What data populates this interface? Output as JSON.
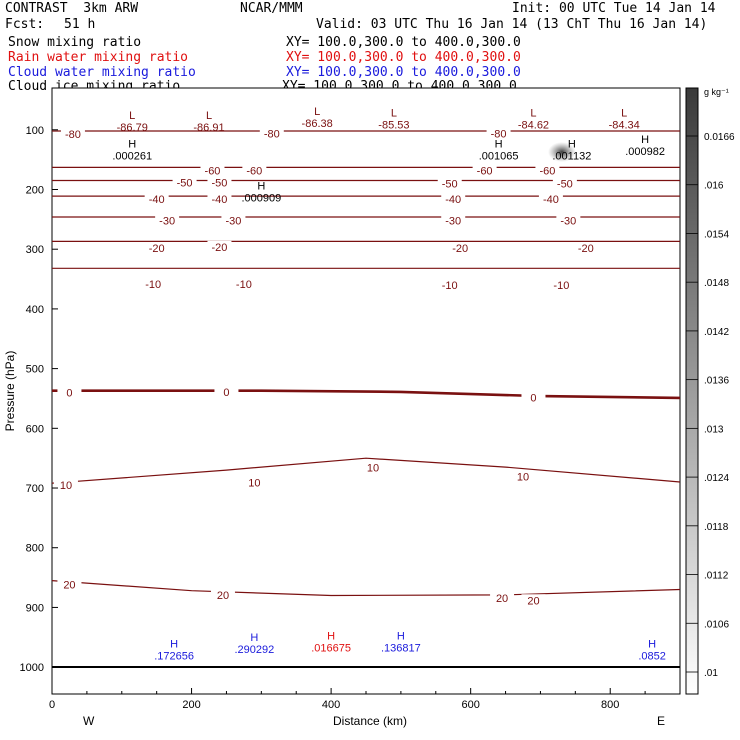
{
  "header": {
    "model": "CONTRAST  3km ARW",
    "center": "NCAR/MMM",
    "init": "Init: 00 UTC Tue 14 Jan 14",
    "fcst_label": "Fcst:",
    "fcst_value": "51 h",
    "valid": "Valid: 03 UTC Thu 16 Jan 14 (13 ChT Thu 16 Jan 14)",
    "fields": [
      {
        "name": "Snow mixing ratio",
        "xy": "XY= 100.0,300.0 to 400.0,300.0",
        "color": "#000000"
      },
      {
        "name": "Rain water mixing ratio",
        "xy": "XY= 100.0,300.0 to 400.0,300.0",
        "color": "#e01010"
      },
      {
        "name": "Cloud water mixing ratio",
        "xy": "XY= 100.0,300.0 to 400.0,300.0",
        "color": "#1a1adc"
      },
      {
        "name": "Cloud ice mixing ratio",
        "xy": "XY= 100.0,300.0 to 400.0,300.0",
        "color": "#000000"
      }
    ]
  },
  "colors": {
    "temperature_contour": "#7a1010",
    "cloud_water": "#1a1adc",
    "rain": "#e01010",
    "snow": "#000000"
  },
  "chart_data": {
    "type": "contour-cross-section",
    "xlabel": "Distance (km)",
    "ylabel": "Pressure (hPa)",
    "xlim": [
      0,
      900
    ],
    "ylim": [
      1045,
      30
    ],
    "x_ticks": [
      0,
      200,
      400,
      600,
      800
    ],
    "y_ticks": [
      100,
      200,
      300,
      400,
      500,
      600,
      700,
      800,
      900,
      1000
    ],
    "direction_labels": {
      "left": "W",
      "right": "E"
    },
    "colorbar": {
      "unit": "g kg⁻¹",
      "ticks": [
        "0.0166",
        ".016",
        ".0154",
        ".0148",
        ".0142",
        ".0136",
        ".013",
        ".0124",
        ".0118",
        ".0112",
        ".0106",
        ".01"
      ]
    },
    "temperature_contours": [
      {
        "value": -80,
        "pressure": [
          102,
          102
        ],
        "x": [
          0,
          900
        ]
      },
      {
        "value": -60,
        "pressure": [
          163,
          163
        ],
        "x": [
          0,
          900
        ]
      },
      {
        "value": -50,
        "pressure": [
          185,
          185
        ],
        "x": [
          0,
          900
        ]
      },
      {
        "value": -40,
        "pressure": [
          211,
          211
        ],
        "x": [
          0,
          900
        ]
      },
      {
        "value": -30,
        "pressure": [
          246,
          246
        ],
        "x": [
          0,
          900
        ]
      },
      {
        "value": -20,
        "pressure": [
          287,
          287
        ],
        "x": [
          0,
          900
        ]
      },
      {
        "value": -10,
        "pressure": [
          332,
          332
        ],
        "x": [
          0,
          900
        ]
      },
      {
        "value": 0,
        "pressure": [
          537,
          537,
          539,
          546,
          549
        ],
        "x": [
          0,
          300,
          500,
          700,
          900
        ]
      },
      {
        "value": 10,
        "pressure": [
          692,
          670,
          650,
          665,
          690
        ],
        "x": [
          0,
          250,
          450,
          650,
          900
        ]
      },
      {
        "value": 20,
        "pressure": [
          855,
          872,
          880,
          879,
          870
        ],
        "x": [
          0,
          200,
          400,
          650,
          900
        ]
      }
    ],
    "contour_labels": [
      {
        "text": "-80",
        "x": 30,
        "p": 107
      },
      {
        "text": "-80",
        "x": 315,
        "p": 106
      },
      {
        "text": "-80",
        "x": 640,
        "p": 106
      },
      {
        "text": "-60",
        "x": 230,
        "p": 168
      },
      {
        "text": "-60",
        "x": 290,
        "p": 168
      },
      {
        "text": "-60",
        "x": 620,
        "p": 168
      },
      {
        "text": "-60",
        "x": 710,
        "p": 168
      },
      {
        "text": "-50",
        "x": 190,
        "p": 188
      },
      {
        "text": "-50",
        "x": 240,
        "p": 188
      },
      {
        "text": "-50",
        "x": 570,
        "p": 190
      },
      {
        "text": "-50",
        "x": 735,
        "p": 190
      },
      {
        "text": "-40",
        "x": 150,
        "p": 216
      },
      {
        "text": "-40",
        "x": 240,
        "p": 216
      },
      {
        "text": "-40",
        "x": 575,
        "p": 216
      },
      {
        "text": "-40",
        "x": 715,
        "p": 216
      },
      {
        "text": "-30",
        "x": 165,
        "p": 252
      },
      {
        "text": "-30",
        "x": 260,
        "p": 252
      },
      {
        "text": "-30",
        "x": 575,
        "p": 252
      },
      {
        "text": "-30",
        "x": 740,
        "p": 252
      },
      {
        "text": "-20",
        "x": 150,
        "p": 298
      },
      {
        "text": "-20",
        "x": 240,
        "p": 296
      },
      {
        "text": "-20",
        "x": 585,
        "p": 298
      },
      {
        "text": "-20",
        "x": 765,
        "p": 298
      },
      {
        "text": "-10",
        "x": 145,
        "p": 358
      },
      {
        "text": "-10",
        "x": 275,
        "p": 358
      },
      {
        "text": "-10",
        "x": 570,
        "p": 360
      },
      {
        "text": "-10",
        "x": 730,
        "p": 360
      },
      {
        "text": "0",
        "x": 25,
        "p": 540
      },
      {
        "text": "0",
        "x": 250,
        "p": 539
      },
      {
        "text": "0",
        "x": 690,
        "p": 548
      },
      {
        "text": "10",
        "x": 20,
        "p": 695
      },
      {
        "text": "10",
        "x": 290,
        "p": 691
      },
      {
        "text": "10",
        "x": 460,
        "p": 666
      },
      {
        "text": "10",
        "x": 675,
        "p": 681
      },
      {
        "text": "20",
        "x": 25,
        "p": 862
      },
      {
        "text": "20",
        "x": 245,
        "p": 879
      },
      {
        "text": "20",
        "x": 645,
        "p": 884
      },
      {
        "text": "20",
        "x": 690,
        "p": 888
      }
    ],
    "extrema": [
      {
        "type": "L",
        "x": 115,
        "p": 82,
        "value": "-86.79",
        "color": "#7a1010"
      },
      {
        "type": "L",
        "x": 225,
        "p": 82,
        "value": "-86.91",
        "color": "#7a1010"
      },
      {
        "type": "L",
        "x": 380,
        "p": 75,
        "value": "-86.38",
        "color": "#7a1010"
      },
      {
        "type": "L",
        "x": 490,
        "p": 78,
        "value": "-85.53",
        "color": "#7a1010"
      },
      {
        "type": "L",
        "x": 690,
        "p": 78,
        "value": "-84.62",
        "color": "#7a1010"
      },
      {
        "type": "L",
        "x": 820,
        "p": 78,
        "value": "-84.34",
        "color": "#7a1010"
      },
      {
        "type": "H",
        "x": 115,
        "p": 130,
        "value": ".000261",
        "color": "#000000"
      },
      {
        "type": "H",
        "x": 640,
        "p": 130,
        "value": ".001065",
        "color": "#000000"
      },
      {
        "type": "H",
        "x": 745,
        "p": 130,
        "value": ".001132",
        "color": "#000000"
      },
      {
        "type": "H",
        "x": 850,
        "p": 122,
        "value": ".000982",
        "color": "#000000"
      },
      {
        "type": "H",
        "x": 300,
        "p": 200,
        "value": ".000909",
        "color": "#000000"
      },
      {
        "type": "H",
        "x": 175,
        "p": 967,
        "value": ".172656",
        "color": "#1a1adc"
      },
      {
        "type": "H",
        "x": 290,
        "p": 956,
        "value": ".290292",
        "color": "#1a1adc"
      },
      {
        "type": "H",
        "x": 400,
        "p": 954,
        "value": ".016675",
        "color": "#e01010"
      },
      {
        "type": "H",
        "x": 500,
        "p": 954,
        "value": ".136817",
        "color": "#1a1adc"
      },
      {
        "type": "H",
        "x": 860,
        "p": 967,
        "value": ".0852",
        "color": "#1a1adc"
      }
    ]
  }
}
